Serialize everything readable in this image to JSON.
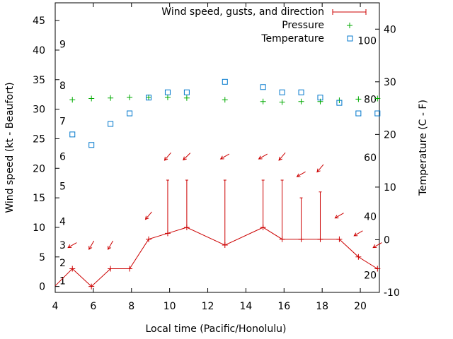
{
  "chart_data": {
    "type": "line",
    "xlabel": "Local time (Pacific/Honolulu)",
    "ylabel": "Wind speed (kt - Beaufort)",
    "y2label": "Temperature (C - F)",
    "xlim": [
      4,
      21
    ],
    "ylim": [
      -1,
      48
    ],
    "y2lim": [
      -10,
      45
    ],
    "x_ticks": [
      4,
      6,
      8,
      10,
      12,
      14,
      16,
      18,
      20
    ],
    "y_ticks": [
      0,
      5,
      10,
      15,
      20,
      25,
      30,
      35,
      40,
      45
    ],
    "y2_ticks": [
      -10,
      0,
      10,
      20,
      30,
      40
    ],
    "beaufort_labels": [
      {
        "label": "1",
        "y": 1
      },
      {
        "label": "2",
        "y": 4
      },
      {
        "label": "3",
        "y": 7
      },
      {
        "label": "4",
        "y": 11
      },
      {
        "label": "5",
        "y": 17
      },
      {
        "label": "6",
        "y": 22
      },
      {
        "label": "7",
        "y": 28
      },
      {
        "label": "8",
        "y": 34
      },
      {
        "label": "9",
        "y": 41
      }
    ],
    "fahrenheit_labels": [
      {
        "label": "20",
        "y2": -6.7
      },
      {
        "label": "40",
        "y2": 4.4
      },
      {
        "label": "60",
        "y2": 15.6
      },
      {
        "label": "80",
        "y2": 26.7
      },
      {
        "label": "100",
        "y2": 37.8
      }
    ],
    "legend": {
      "position": "top-right",
      "entries": [
        "Wind speed, gusts, and direction",
        "Pressure",
        "Temperature"
      ]
    },
    "colors": {
      "wind": "#cc0000",
      "pressure": "#00aa00",
      "temperature": "#0077cc"
    },
    "series": [
      {
        "name": "Wind speed, gusts, and direction",
        "x": [
          4,
          4.9,
          5.9,
          6.9,
          7.9,
          8.9,
          9.9,
          10.9,
          12.9,
          14.9,
          15.9,
          16.9,
          17.9,
          18.9,
          19.9,
          20.9,
          21
        ],
        "values": [
          0.1,
          3,
          0,
          3,
          3,
          8,
          9,
          10,
          7,
          10,
          8,
          8,
          8,
          8,
          5,
          3,
          3
        ],
        "gusts": [
          null,
          null,
          null,
          null,
          null,
          null,
          18,
          18,
          18,
          18,
          18,
          15,
          16,
          null,
          null,
          null,
          null
        ],
        "arrow_y": [
          null,
          7,
          7,
          7,
          null,
          12,
          22,
          22,
          22,
          22,
          22,
          19,
          20,
          12,
          9,
          7,
          null
        ],
        "direction_deg": [
          null,
          60,
          30,
          30,
          null,
          40,
          40,
          45,
          60,
          60,
          40,
          60,
          40,
          60,
          60,
          60,
          null
        ]
      },
      {
        "name": "Pressure",
        "x": [
          4.9,
          5.9,
          6.9,
          7.9,
          8.9,
          9.9,
          10.9,
          12.9,
          14.9,
          15.9,
          16.9,
          17.9,
          18.9,
          19.9,
          20.9
        ],
        "values": [
          31.6,
          31.8,
          31.9,
          32.0,
          32.0,
          32.0,
          31.9,
          31.6,
          31.3,
          31.2,
          31.3,
          31.3,
          31.5,
          31.7,
          31.8
        ]
      },
      {
        "name": "Temperature",
        "x": [
          4.9,
          5.9,
          6.9,
          7.9,
          8.9,
          9.9,
          10.9,
          12.9,
          14.9,
          15.9,
          16.9,
          17.9,
          18.9,
          19.9,
          20.9
        ],
        "values": [
          20,
          18,
          22,
          24,
          27,
          28,
          28,
          30,
          29,
          28,
          28,
          27,
          26,
          24,
          24
        ]
      }
    ]
  }
}
